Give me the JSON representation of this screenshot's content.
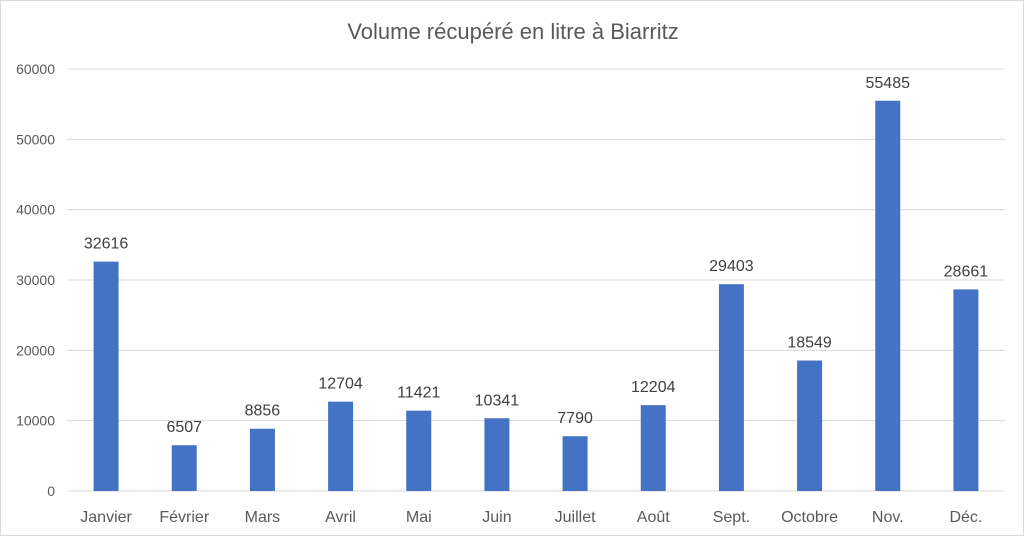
{
  "chart_data": {
    "type": "bar",
    "title": "Volume récupéré en litre à Biarritz",
    "xlabel": "",
    "ylabel": "",
    "categories": [
      "Janvier",
      "Février",
      "Mars",
      "Avril",
      "Mai",
      "Juin",
      "Juillet",
      "Août",
      "Sept.",
      "Octobre",
      "Nov.",
      "Déc."
    ],
    "values": [
      32616,
      6507,
      8856,
      12704,
      11421,
      10341,
      7790,
      12204,
      29403,
      18549,
      55485,
      28661
    ],
    "ylim": [
      0,
      60000
    ],
    "yticks": [
      "0",
      "10000",
      "20000",
      "30000",
      "40000",
      "50000",
      "60000"
    ],
    "grid": true,
    "legend": "none",
    "colors": {
      "bar": "#4472c4",
      "grid": "#d9d9d9",
      "text": "#595959"
    }
  }
}
